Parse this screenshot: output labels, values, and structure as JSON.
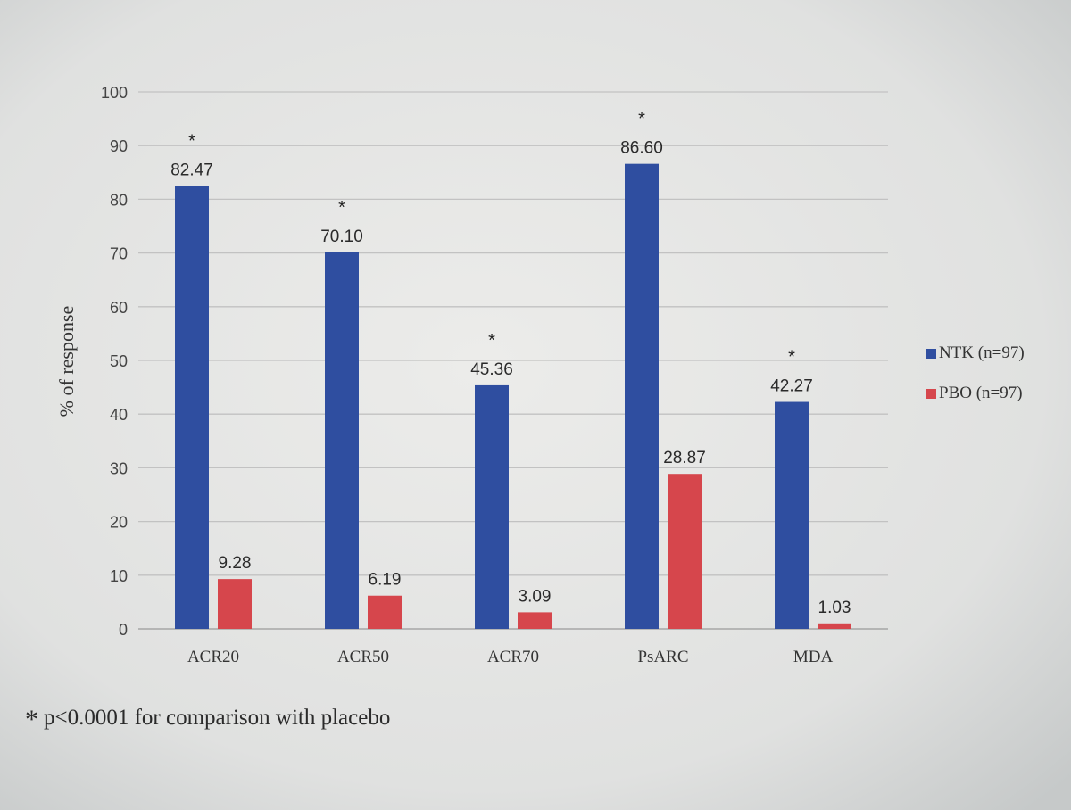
{
  "chart_data": {
    "type": "bar",
    "title": "",
    "xlabel": "",
    "ylabel": "% of response",
    "ylim": [
      0,
      100
    ],
    "yticks": [
      0,
      10,
      20,
      30,
      40,
      50,
      60,
      70,
      80,
      90,
      100
    ],
    "grid": true,
    "legend_position": "right",
    "categories": [
      "ACR20",
      "ACR50",
      "ACR70",
      "PsARC",
      "MDA"
    ],
    "series": [
      {
        "name": "NTK (n=97)",
        "color": "#2f4ea0",
        "values": [
          82.47,
          70.1,
          45.36,
          86.6,
          42.27
        ],
        "labels": [
          "82.47",
          "70.10",
          "45.36",
          "86.60",
          "42.27"
        ]
      },
      {
        "name": "PBO (n=97)",
        "color": "#d6464c",
        "values": [
          9.28,
          6.19,
          3.09,
          28.87,
          1.03
        ],
        "labels": [
          "9.28",
          "6.19",
          "3.09",
          "28.87",
          "1.03"
        ]
      }
    ],
    "significance_marker": "*",
    "significant_categories": [
      "ACR20",
      "ACR50",
      "ACR70",
      "PsARC",
      "MDA"
    ],
    "footnote": {
      "marker": "*",
      "text": "p<0.0001 for comparison with placebo"
    }
  }
}
